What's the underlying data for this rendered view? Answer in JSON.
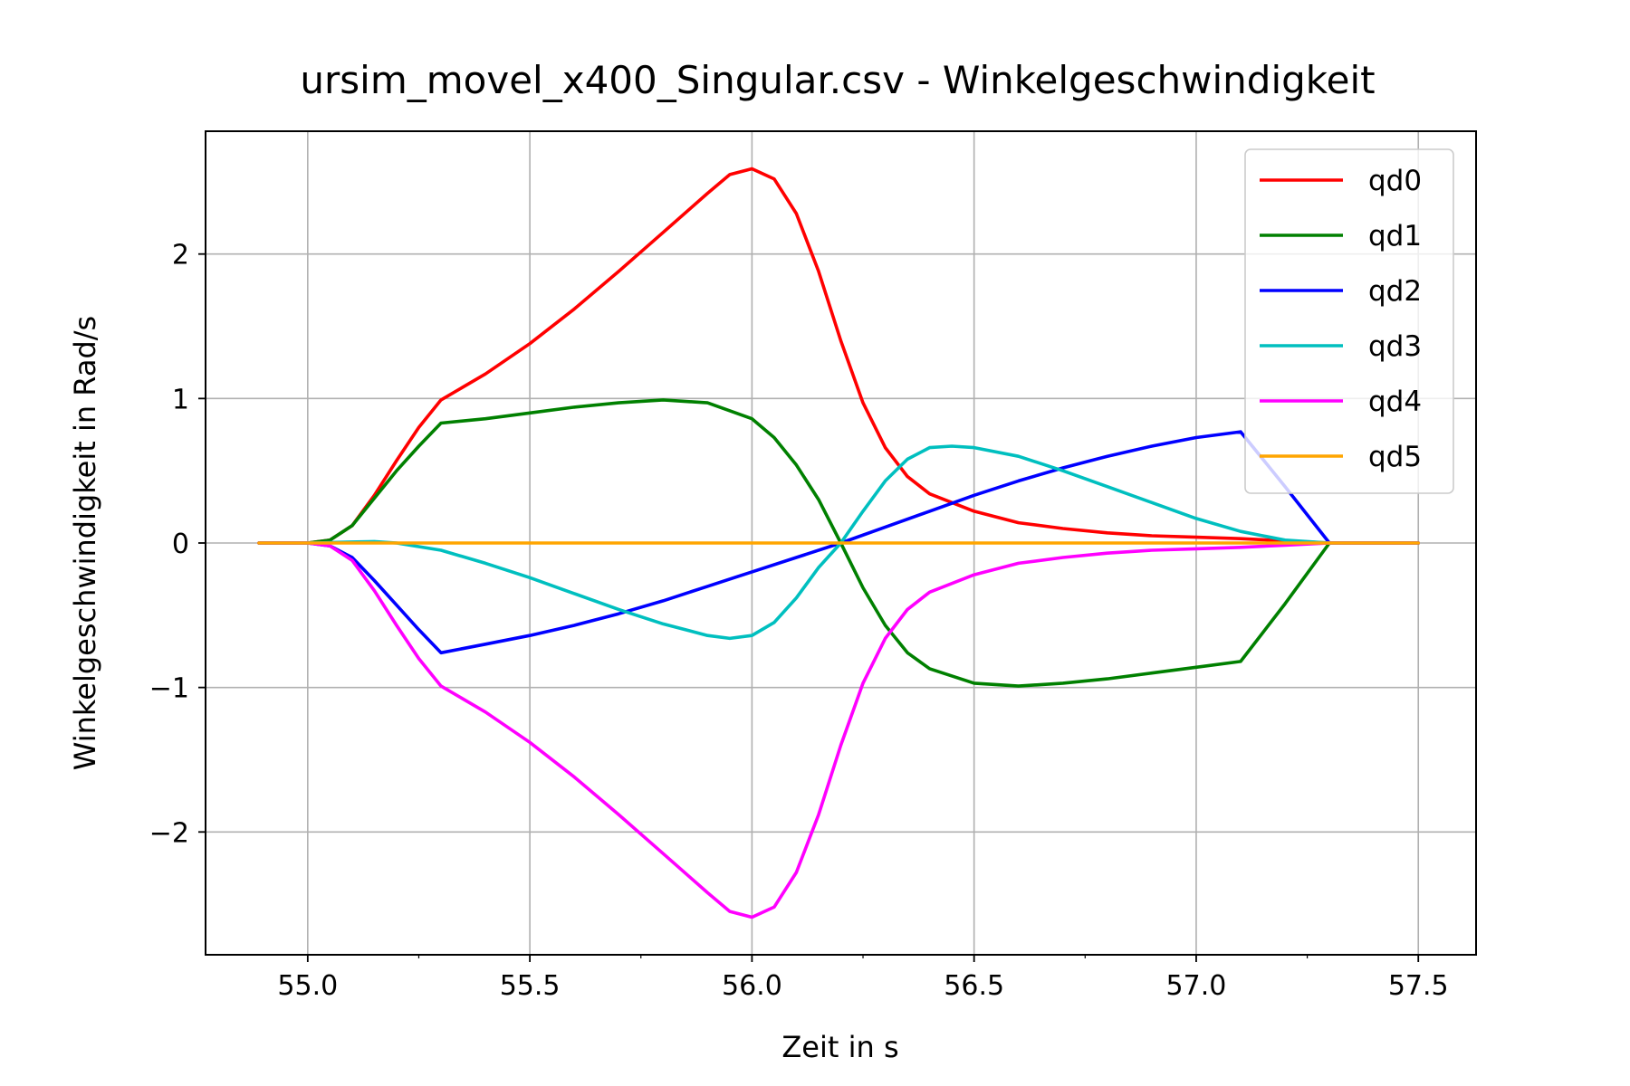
{
  "chart_data": {
    "type": "line",
    "title": "ursim_movel_x400_Singular.csv - Winkelgeschwindigkeit",
    "xlabel": "Zeit in s",
    "ylabel": "Winkelgeschwindigkeit in Rad/s",
    "xlim": [
      54.77,
      57.63
    ],
    "ylim": [
      -2.85,
      2.85
    ],
    "xticks": [
      55.0,
      55.5,
      56.0,
      56.5,
      57.0,
      57.5
    ],
    "xtick_labels": [
      "55.0",
      "55.5",
      "56.0",
      "56.5",
      "57.0",
      "57.5"
    ],
    "yticks": [
      -2,
      -1,
      0,
      1,
      2
    ],
    "ytick_labels": [
      "−2",
      "−1",
      "0",
      "1",
      "2"
    ],
    "grid": true,
    "legend_position": "top-right",
    "series": [
      {
        "name": "qd0",
        "color": "#ff0000",
        "points": [
          [
            54.89,
            0
          ],
          [
            55.0,
            0
          ],
          [
            55.05,
            0.02
          ],
          [
            55.1,
            0.12
          ],
          [
            55.15,
            0.33
          ],
          [
            55.2,
            0.57
          ],
          [
            55.25,
            0.8
          ],
          [
            55.3,
            0.99
          ],
          [
            55.4,
            1.17
          ],
          [
            55.5,
            1.38
          ],
          [
            55.6,
            1.62
          ],
          [
            55.7,
            1.88
          ],
          [
            55.8,
            2.15
          ],
          [
            55.9,
            2.42
          ],
          [
            55.95,
            2.55
          ],
          [
            56.0,
            2.59
          ],
          [
            56.05,
            2.52
          ],
          [
            56.1,
            2.28
          ],
          [
            56.15,
            1.88
          ],
          [
            56.2,
            1.4
          ],
          [
            56.25,
            0.97
          ],
          [
            56.3,
            0.66
          ],
          [
            56.35,
            0.46
          ],
          [
            56.4,
            0.34
          ],
          [
            56.5,
            0.22
          ],
          [
            56.6,
            0.14
          ],
          [
            56.7,
            0.1
          ],
          [
            56.8,
            0.07
          ],
          [
            56.9,
            0.05
          ],
          [
            57.0,
            0.04
          ],
          [
            57.1,
            0.03
          ],
          [
            57.2,
            0.015
          ],
          [
            57.3,
            0
          ],
          [
            57.5,
            0
          ]
        ]
      },
      {
        "name": "qd1",
        "color": "#008000",
        "points": [
          [
            54.89,
            0
          ],
          [
            55.0,
            0
          ],
          [
            55.05,
            0.02
          ],
          [
            55.1,
            0.12
          ],
          [
            55.15,
            0.31
          ],
          [
            55.2,
            0.5
          ],
          [
            55.25,
            0.67
          ],
          [
            55.3,
            0.83
          ],
          [
            55.4,
            0.86
          ],
          [
            55.5,
            0.9
          ],
          [
            55.6,
            0.94
          ],
          [
            55.7,
            0.97
          ],
          [
            55.8,
            0.99
          ],
          [
            55.9,
            0.97
          ],
          [
            56.0,
            0.86
          ],
          [
            56.05,
            0.73
          ],
          [
            56.1,
            0.54
          ],
          [
            56.15,
            0.3
          ],
          [
            56.2,
            0.0
          ],
          [
            56.25,
            -0.31
          ],
          [
            56.3,
            -0.57
          ],
          [
            56.35,
            -0.76
          ],
          [
            56.4,
            -0.87
          ],
          [
            56.5,
            -0.97
          ],
          [
            56.6,
            -0.99
          ],
          [
            56.7,
            -0.97
          ],
          [
            56.8,
            -0.94
          ],
          [
            56.9,
            -0.9
          ],
          [
            57.0,
            -0.86
          ],
          [
            57.1,
            -0.82
          ],
          [
            57.2,
            -0.42
          ],
          [
            57.3,
            0
          ],
          [
            57.5,
            0
          ]
        ]
      },
      {
        "name": "qd2",
        "color": "#0000ff",
        "points": [
          [
            54.89,
            0
          ],
          [
            55.0,
            0
          ],
          [
            55.05,
            -0.02
          ],
          [
            55.1,
            -0.1
          ],
          [
            55.15,
            -0.26
          ],
          [
            55.2,
            -0.43
          ],
          [
            55.25,
            -0.6
          ],
          [
            55.3,
            -0.76
          ],
          [
            55.4,
            -0.7
          ],
          [
            55.5,
            -0.64
          ],
          [
            55.6,
            -0.57
          ],
          [
            55.7,
            -0.49
          ],
          [
            55.8,
            -0.4
          ],
          [
            55.9,
            -0.3
          ],
          [
            56.0,
            -0.2
          ],
          [
            56.1,
            -0.1
          ],
          [
            56.2,
            0
          ],
          [
            56.3,
            0.11
          ],
          [
            56.4,
            0.22
          ],
          [
            56.5,
            0.33
          ],
          [
            56.6,
            0.43
          ],
          [
            56.7,
            0.52
          ],
          [
            56.8,
            0.6
          ],
          [
            56.9,
            0.67
          ],
          [
            57.0,
            0.73
          ],
          [
            57.1,
            0.77
          ],
          [
            57.2,
            0.39
          ],
          [
            57.3,
            0
          ],
          [
            57.5,
            0
          ]
        ]
      },
      {
        "name": "qd3",
        "color": "#00bfbf",
        "points": [
          [
            54.89,
            0
          ],
          [
            55.0,
            0
          ],
          [
            55.15,
            0.01
          ],
          [
            55.2,
            0.0
          ],
          [
            55.3,
            -0.05
          ],
          [
            55.4,
            -0.14
          ],
          [
            55.5,
            -0.24
          ],
          [
            55.6,
            -0.35
          ],
          [
            55.7,
            -0.46
          ],
          [
            55.8,
            -0.56
          ],
          [
            55.9,
            -0.64
          ],
          [
            55.95,
            -0.66
          ],
          [
            56.0,
            -0.64
          ],
          [
            56.05,
            -0.55
          ],
          [
            56.1,
            -0.38
          ],
          [
            56.15,
            -0.17
          ],
          [
            56.2,
            0.0
          ],
          [
            56.25,
            0.22
          ],
          [
            56.3,
            0.43
          ],
          [
            56.35,
            0.58
          ],
          [
            56.4,
            0.66
          ],
          [
            56.45,
            0.67
          ],
          [
            56.5,
            0.66
          ],
          [
            56.6,
            0.6
          ],
          [
            56.7,
            0.5
          ],
          [
            56.8,
            0.39
          ],
          [
            56.9,
            0.28
          ],
          [
            57.0,
            0.17
          ],
          [
            57.1,
            0.08
          ],
          [
            57.2,
            0.02
          ],
          [
            57.3,
            0
          ],
          [
            57.5,
            0
          ]
        ]
      },
      {
        "name": "qd4",
        "color": "#ff00ff",
        "points": [
          [
            54.89,
            0
          ],
          [
            55.0,
            0
          ],
          [
            55.05,
            -0.02
          ],
          [
            55.1,
            -0.12
          ],
          [
            55.15,
            -0.33
          ],
          [
            55.2,
            -0.57
          ],
          [
            55.25,
            -0.8
          ],
          [
            55.3,
            -0.99
          ],
          [
            55.4,
            -1.17
          ],
          [
            55.5,
            -1.38
          ],
          [
            55.6,
            -1.62
          ],
          [
            55.7,
            -1.88
          ],
          [
            55.8,
            -2.15
          ],
          [
            55.9,
            -2.42
          ],
          [
            55.95,
            -2.55
          ],
          [
            56.0,
            -2.59
          ],
          [
            56.05,
            -2.52
          ],
          [
            56.1,
            -2.28
          ],
          [
            56.15,
            -1.88
          ],
          [
            56.2,
            -1.4
          ],
          [
            56.25,
            -0.97
          ],
          [
            56.3,
            -0.66
          ],
          [
            56.35,
            -0.46
          ],
          [
            56.4,
            -0.34
          ],
          [
            56.5,
            -0.22
          ],
          [
            56.6,
            -0.14
          ],
          [
            56.7,
            -0.1
          ],
          [
            56.8,
            -0.07
          ],
          [
            56.9,
            -0.05
          ],
          [
            57.0,
            -0.04
          ],
          [
            57.1,
            -0.03
          ],
          [
            57.2,
            -0.015
          ],
          [
            57.3,
            0
          ],
          [
            57.5,
            0
          ]
        ]
      },
      {
        "name": "qd5",
        "color": "#ffa500",
        "points": [
          [
            54.89,
            0
          ],
          [
            57.5,
            0
          ]
        ]
      }
    ]
  }
}
